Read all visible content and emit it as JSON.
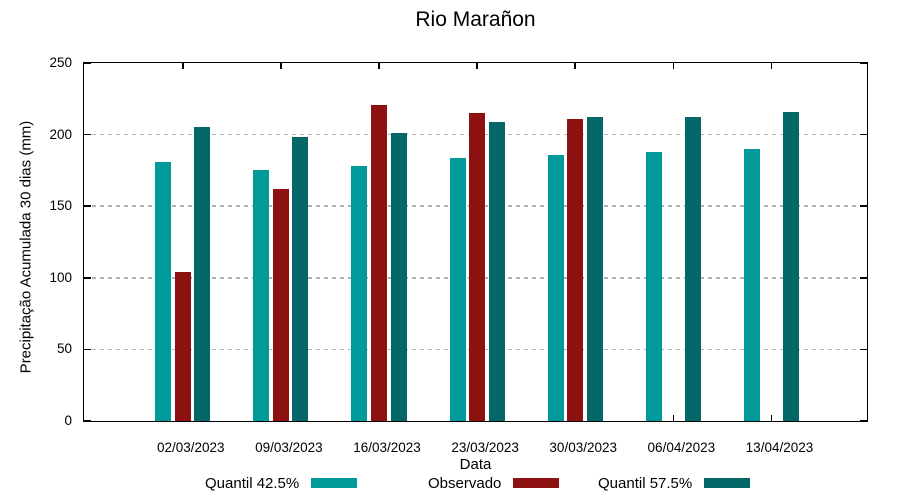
{
  "chart_data": {
    "type": "bar",
    "title": "Rio Marañon",
    "xlabel": "Data",
    "ylabel": "Precipitação Acumulada 30 dias (mm)",
    "ylim": [
      0,
      250
    ],
    "yticks": [
      0,
      50,
      100,
      150,
      200,
      250
    ],
    "gridline_values": [
      50,
      100,
      150,
      200
    ],
    "grid": "horizontal dashed",
    "legend_position": "bottom",
    "categories": [
      "02/03/2023",
      "09/03/2023",
      "16/03/2023",
      "23/03/2023",
      "30/03/2023",
      "06/04/2023",
      "13/04/2023"
    ],
    "series": [
      {
        "name": "Quantil 42.5%",
        "color": "#009a9a",
        "values": [
          181,
          175,
          178,
          184,
          186,
          188,
          190
        ]
      },
      {
        "name": "Observado",
        "color": "#8e1111",
        "values": [
          104,
          162,
          221,
          215,
          211,
          null,
          null
        ]
      },
      {
        "name": "Quantil 57.5%",
        "color": "#046868",
        "values": [
          205,
          198,
          201,
          209,
          212,
          212,
          216
        ]
      }
    ],
    "colors": {
      "grid": "#b3b3b3",
      "axis": "#000000"
    }
  }
}
